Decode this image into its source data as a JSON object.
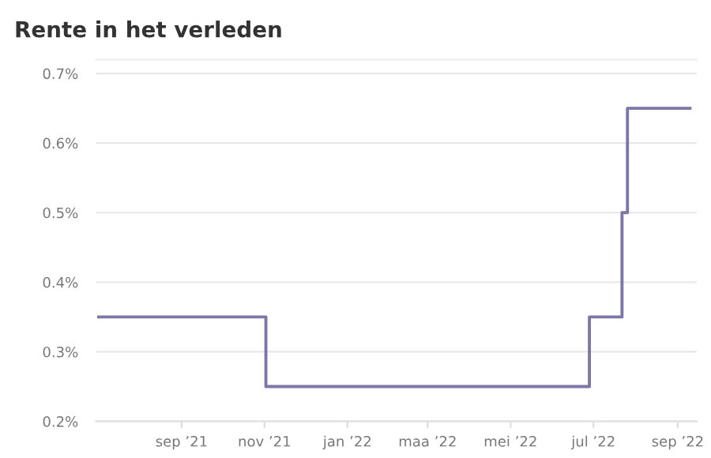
{
  "chart_data": {
    "type": "step",
    "title": "Rente in het verleden",
    "x": [
      "2021-07-02",
      "2021-11-02",
      "2022-06-28",
      "2022-07-22",
      "2022-07-26",
      "2022-09-10"
    ],
    "series": [
      {
        "color": "#7b78a8",
        "values": [
          0.35,
          0.25,
          0.35,
          0.5,
          0.65,
          0.65
        ]
      }
    ],
    "xlim": [
      "2021-06-30",
      "2022-09-15"
    ],
    "xticks": [
      {
        "value": "2021-09-01",
        "label": "sep ’21"
      },
      {
        "value": "2021-11-01",
        "label": "nov ’21"
      },
      {
        "value": "2022-01-01",
        "label": "jan ’22"
      },
      {
        "value": "2022-03-01",
        "label": "maa ’22"
      },
      {
        "value": "2022-05-01",
        "label": "mei ’22"
      },
      {
        "value": "2022-07-01",
        "label": "jul ’22"
      },
      {
        "value": "2022-09-01",
        "label": "sep ’22"
      }
    ],
    "ylim": [
      0.2,
      0.72
    ],
    "yticks": [
      {
        "value": 0.2,
        "label": "0.2%"
      },
      {
        "value": 0.3,
        "label": "0.3%"
      },
      {
        "value": 0.4,
        "label": "0.4%"
      },
      {
        "value": 0.5,
        "label": "0.5%"
      },
      {
        "value": 0.6,
        "label": "0.6%"
      },
      {
        "value": 0.7,
        "label": "0.7%"
      }
    ],
    "grid": "y"
  }
}
